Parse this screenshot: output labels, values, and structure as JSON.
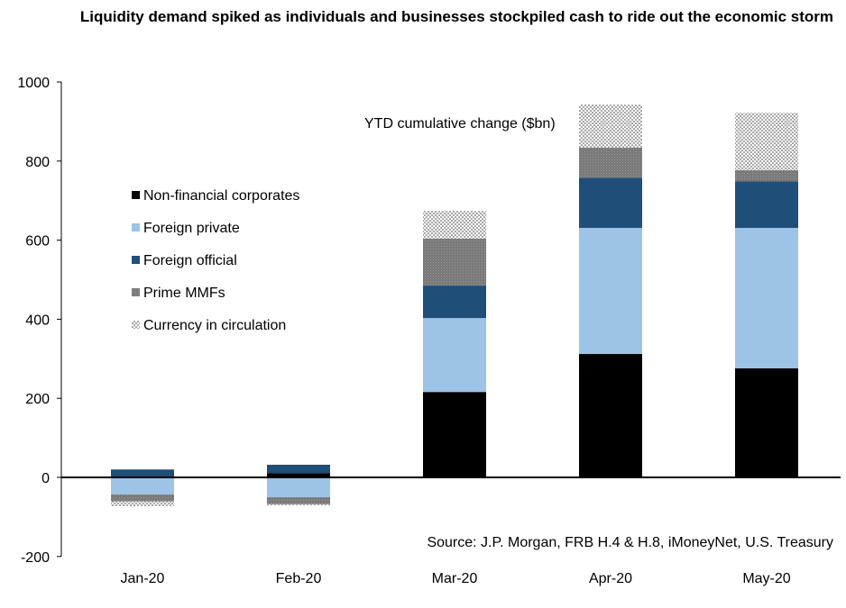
{
  "chart_data": {
    "type": "bar",
    "stacked": true,
    "title": "Liquidity demand spiked as individuals and businesses stockpiled cash to ride out the economic storm",
    "annotation": "YTD cumulative change ($bn)",
    "source": "Source: J.P. Morgan, FRB H.4 & H.8, iMoneyNet, U.S. Treasury",
    "categories": [
      "Jan-20",
      "Feb-20",
      "Mar-20",
      "Apr-20",
      "May-20"
    ],
    "ylim": [
      -200,
      1000
    ],
    "yticks": [
      -200,
      0,
      200,
      400,
      600,
      800,
      1000
    ],
    "grid": false,
    "legend_placement": "left",
    "series": [
      {
        "name": "Non-financial corporates",
        "color": "#000000",
        "values": [
          0,
          11,
          216,
          312,
          276
        ]
      },
      {
        "name": "Foreign private",
        "color": "#9DC3E6",
        "values": [
          -43,
          -50,
          187,
          319,
          355
        ]
      },
      {
        "name": "Foreign official",
        "color": "#1F4E79",
        "values": [
          20,
          21,
          82,
          127,
          118
        ]
      },
      {
        "name": "Prime MMFs",
        "color": "#808080",
        "values": [
          -18,
          -18,
          119,
          76,
          28
        ]
      },
      {
        "name": "Currency in circulation",
        "color": "#C8C8C8",
        "values": [
          -12,
          -3,
          70,
          109,
          145
        ]
      }
    ]
  }
}
